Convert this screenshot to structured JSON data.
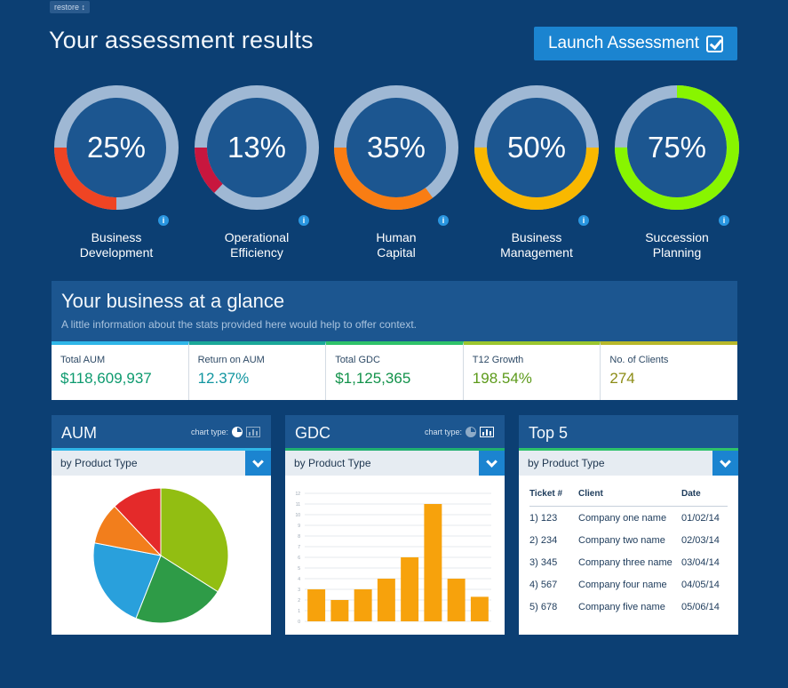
{
  "restore_label": "restore ↕",
  "page": {
    "title": "Your assessment results",
    "launch_button": "Launch Assessment"
  },
  "gauges": [
    {
      "percent_label": "25%",
      "value": 25,
      "line1": "Business",
      "line2": "Development",
      "color": "#ef4423"
    },
    {
      "percent_label": "13%",
      "value": 13,
      "line1": "Operational",
      "line2": "Efficiency",
      "color": "#c8163e"
    },
    {
      "percent_label": "35%",
      "value": 35,
      "line1": "Human",
      "line2": "Capital",
      "color": "#f97d13"
    },
    {
      "percent_label": "50%",
      "value": 50,
      "line1": "Business",
      "line2": "Management",
      "color": "#f9b800"
    },
    {
      "percent_label": "75%",
      "value": 75,
      "line1": "Succession",
      "line2": "Planning",
      "color": "#88f500"
    }
  ],
  "glance": {
    "title": "Your business at a glance",
    "subtitle": "A little information about the stats provided here would help to offer context.",
    "stats": [
      {
        "label": "Total AUM",
        "value": "$118,609,937",
        "color": "#0d9a6e",
        "accent": "#2fb6e8"
      },
      {
        "label": "Return on AUM",
        "value": "12.37%",
        "color": "#1296a0",
        "accent": "#1aa899"
      },
      {
        "label": "Total GDC",
        "value": "$1,125,365",
        "color": "#12924a",
        "accent": "#2ec26a"
      },
      {
        "label": "T12 Growth",
        "value": "198.54%",
        "color": "#5c9a1a",
        "accent": "#9bc62e"
      },
      {
        "label": "No. of Clients",
        "value": "274",
        "color": "#8c8c16",
        "accent": "#b8b82a"
      }
    ]
  },
  "cards": {
    "aum": {
      "title": "AUM",
      "chart_type_label": "chart type:",
      "dropdown": "by Product Type",
      "chart_data": {
        "type": "pie",
        "title": "",
        "slices": [
          {
            "value": 34,
            "color": "#92be12"
          },
          {
            "value": 22,
            "color": "#2e9b47"
          },
          {
            "value": 22,
            "color": "#29a0dc"
          },
          {
            "value": 10,
            "color": "#f27e1c"
          },
          {
            "value": 12,
            "color": "#e42a2a"
          }
        ]
      }
    },
    "gdc": {
      "title": "GDC",
      "chart_type_label": "chart type:",
      "dropdown": "by Product Type",
      "chart_data": {
        "type": "bar",
        "title": "",
        "categories": [
          "",
          "",
          "",
          "",
          "",
          "",
          "",
          ""
        ],
        "values": [
          3,
          2,
          3,
          4,
          6,
          11,
          4,
          2.3
        ],
        "ylim": [
          0,
          12
        ],
        "yticks": [
          "0",
          "1",
          "2",
          "3",
          "4",
          "5",
          "6",
          "7",
          "8",
          "9",
          "10",
          "11",
          "12"
        ],
        "color": "#f7a20c"
      }
    },
    "top5": {
      "title": "Top 5",
      "dropdown": "by Product Type",
      "headers": [
        "Ticket #",
        "Client",
        "Date"
      ],
      "rows": [
        [
          "1) 123",
          "Company one name",
          "01/02/14"
        ],
        [
          "2) 234",
          "Company two name",
          "02/03/14"
        ],
        [
          "3) 345",
          "Company three name",
          "03/04/14"
        ],
        [
          "4) 567",
          "Company four name",
          "04/05/14"
        ],
        [
          "5) 678",
          "Company five name",
          "05/06/14"
        ]
      ]
    }
  }
}
